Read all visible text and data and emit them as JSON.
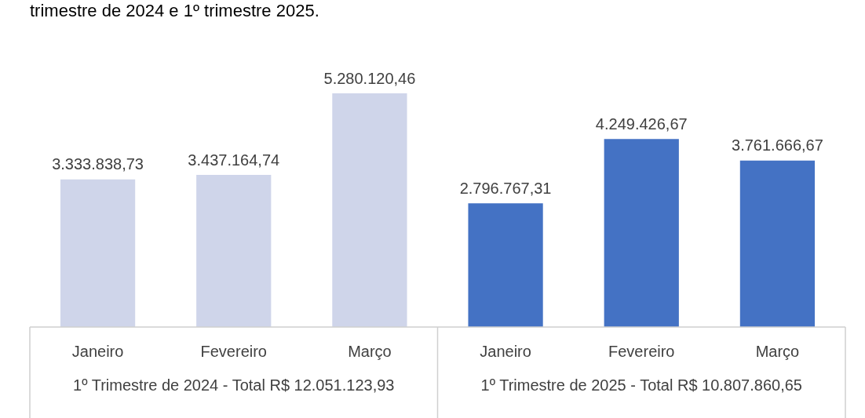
{
  "chart_data": {
    "type": "bar",
    "title": "trimestre de 2024 e 1º trimestre 2025.",
    "categories": [
      "Janeiro",
      "Fevereiro",
      "Março",
      "Janeiro",
      "Fevereiro",
      "Março"
    ],
    "values": [
      3333838.73,
      3437164.74,
      5280120.46,
      2796767.31,
      4249426.67,
      3761666.67
    ],
    "colors": [
      "#cfd5ea",
      "#cfd5ea",
      "#cfd5ea",
      "#4472c4",
      "#4472c4",
      "#4472c4"
    ],
    "value_labels": [
      "3.333.838,73",
      "3.437.164,74",
      "5.280.120,46",
      "2.796.767,31",
      "4.249.426,67",
      "3.761.666,67"
    ],
    "annotations": [
      "1º Trimestre de 2024 - Total R$ 12.051.123,93",
      "1º Trimestre de 2025 - Total R$ 10.807.860,65"
    ],
    "grid": false,
    "legend": false
  }
}
